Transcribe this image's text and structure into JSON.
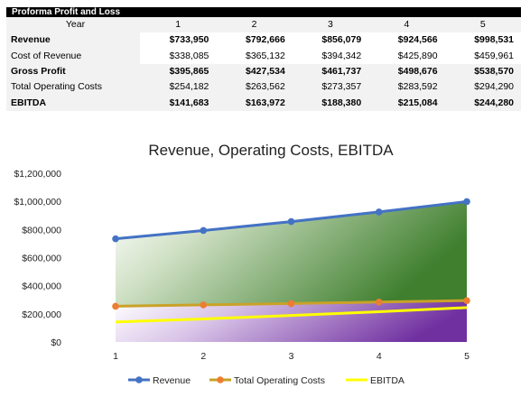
{
  "table": {
    "title": "Proforma Profit and Loss",
    "header_label": "Year",
    "years": [
      "1",
      "2",
      "3",
      "4",
      "5"
    ],
    "rows": [
      {
        "label": "Revenue",
        "bold": true,
        "shaded": false,
        "values": [
          "$733,950",
          "$792,666",
          "$856,079",
          "$924,566",
          "$998,531"
        ]
      },
      {
        "label": "Cost of Revenue",
        "bold": false,
        "shaded": false,
        "values": [
          "$338,085",
          "$365,132",
          "$394,342",
          "$425,890",
          "$459,961"
        ]
      },
      {
        "label": "Gross Profit",
        "bold": true,
        "shaded": true,
        "values": [
          "$395,865",
          "$427,534",
          "$461,737",
          "$498,676",
          "$538,570"
        ]
      },
      {
        "label": "Total Operating Costs",
        "bold": false,
        "shaded": true,
        "values": [
          "$254,182",
          "$263,562",
          "$273,357",
          "$283,592",
          "$294,290"
        ]
      },
      {
        "label": "EBITDA",
        "bold": true,
        "shaded": true,
        "values": [
          "$141,683",
          "$163,972",
          "$188,380",
          "$215,084",
          "$244,280"
        ]
      }
    ]
  },
  "chart_data": {
    "type": "line",
    "title": "Revenue, Operating Costs, EBITDA",
    "x": [
      1,
      2,
      3,
      4,
      5
    ],
    "x_tick_labels": [
      "1",
      "2",
      "3",
      "4",
      "5"
    ],
    "ylim": [
      0,
      1200000
    ],
    "y_tick_labels": [
      "$0",
      "$200,000",
      "$400,000",
      "$600,000",
      "$800,000",
      "$1,000,000",
      "$1,200,000"
    ],
    "y_ticks": [
      0,
      200000,
      400000,
      600000,
      800000,
      1000000,
      1200000
    ],
    "legend_position": "bottom",
    "grid": false,
    "series": [
      {
        "name": "Revenue",
        "color": "#4472c4",
        "marker": true,
        "values": [
          733950,
          792666,
          856079,
          924566,
          998531
        ]
      },
      {
        "name": "Total Operating Costs",
        "color": "#ed7d31",
        "line_color": "#c9a227",
        "marker": true,
        "values": [
          254182,
          263562,
          273357,
          283592,
          294290
        ]
      },
      {
        "name": "EBITDA",
        "color": "#ffff00",
        "marker": false,
        "values": [
          141683,
          163972,
          188380,
          215084,
          244280
        ]
      }
    ],
    "fill_colors": {
      "area_top": "#4e8a3a",
      "area_bottom": "#7030a0"
    }
  }
}
